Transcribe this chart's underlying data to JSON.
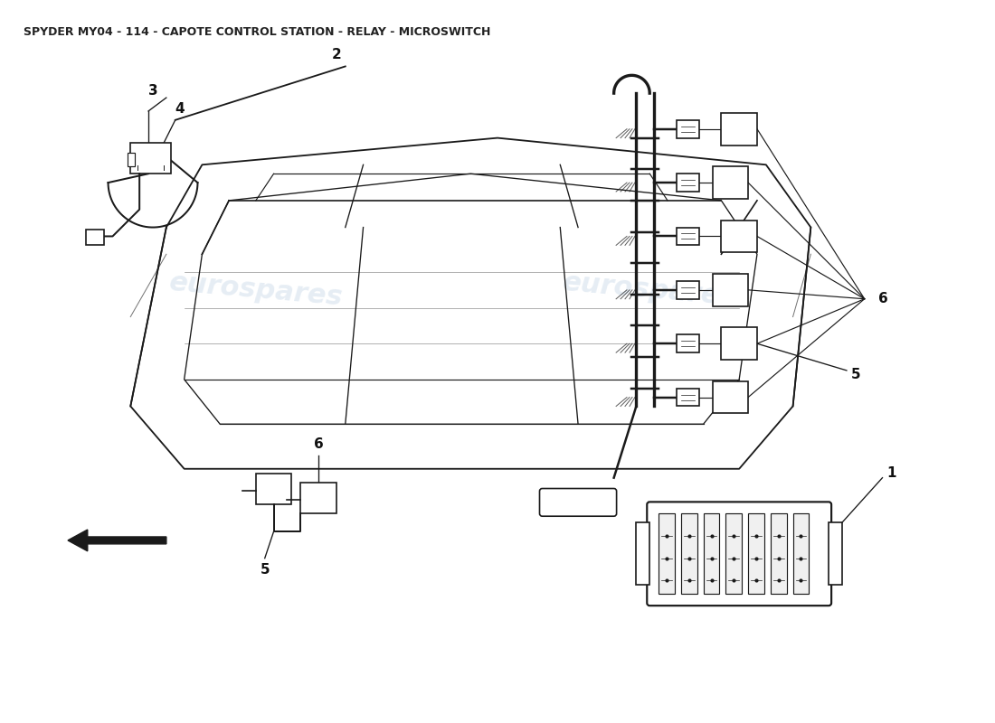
{
  "title": "SPYDER MY04 - 114 - CAPOTE CONTROL STATION - RELAY - MICROSWITCH",
  "title_fontsize": 9,
  "title_color": "#222222",
  "background_color": "#ffffff",
  "watermark_text": "eurospares",
  "watermark_color": "#c8d8e8",
  "watermark_alpha": 0.45,
  "line_color": "#1a1a1a",
  "line_width": 1.2,
  "label_fontsize": 11,
  "label_color": "#111111",
  "figsize": [
    11.0,
    8.0
  ],
  "dpi": 100
}
